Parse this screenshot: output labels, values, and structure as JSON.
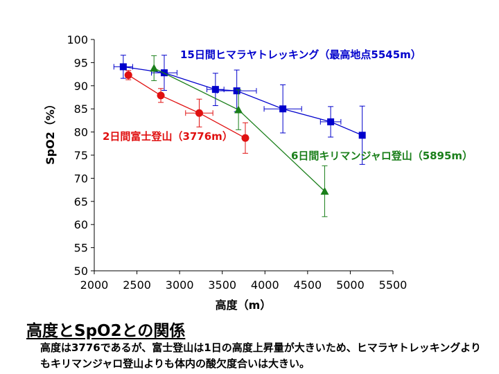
{
  "chart_data": {
    "type": "scatter",
    "xlabel": "高度（m）",
    "ylabel": "SpO2（%）",
    "xlim": [
      2000,
      5500
    ],
    "ylim": [
      50,
      100
    ],
    "xticks": [
      2000,
      2500,
      3000,
      3500,
      4000,
      4500,
      5000,
      5500
    ],
    "yticks": [
      50,
      55,
      60,
      65,
      70,
      75,
      80,
      85,
      90,
      95,
      100
    ],
    "grid": false,
    "series": [
      {
        "name": "15日間ヒマラヤトレッキング（最高地点5545m）",
        "color": "#0000cc",
        "marker": "square",
        "points": [
          {
            "x": 2340,
            "y": 94.1,
            "xerr": 110,
            "yerr": 2.5
          },
          {
            "x": 2820,
            "y": 92.8,
            "xerr": 150,
            "yerr": 3.8
          },
          {
            "x": 3420,
            "y": 89.2,
            "xerr": 100,
            "yerr": 3.5
          },
          {
            "x": 3670,
            "y": 88.9,
            "xerr": 230,
            "yerr": 4.5
          },
          {
            "x": 4210,
            "y": 85.0,
            "xerr": 220,
            "yerr": 5.2
          },
          {
            "x": 4770,
            "y": 82.2,
            "xerr": 120,
            "yerr": 3.3
          },
          {
            "x": 5140,
            "y": 79.3,
            "xerr": 0,
            "yerr": 6.3
          }
        ]
      },
      {
        "name": "2日間富士登山（3776m）",
        "color": "#e01010",
        "marker": "circle",
        "points": [
          {
            "x": 2400,
            "y": 92.3,
            "xerr": 0,
            "yerr": 1.0
          },
          {
            "x": 2780,
            "y": 87.9,
            "xerr": 0,
            "yerr": 1.5
          },
          {
            "x": 3230,
            "y": 84.1,
            "xerr": 160,
            "yerr": 3.0
          },
          {
            "x": 3770,
            "y": 78.7,
            "xerr": 0,
            "yerr": 3.3
          }
        ]
      },
      {
        "name": "6日間キリマンジャロ登山（5895m）",
        "color": "#1a7f1a",
        "marker": "triangle",
        "points": [
          {
            "x": 2700,
            "y": 93.8,
            "xerr": 0,
            "yerr": 2.7
          },
          {
            "x": 3690,
            "y": 84.8,
            "xerr": 0,
            "yerr": 4.3
          },
          {
            "x": 4700,
            "y": 67.2,
            "xerr": 0,
            "yerr": 5.5
          }
        ]
      }
    ]
  },
  "heading": "高度とSpO2との関係",
  "caption": "高度は3776であるが、富士登山は1日の高度上昇量が大きいため、ヒマラヤトレッキングよりもキリマンジャロ登山よりも体内の酸欠度合いは大きい。"
}
